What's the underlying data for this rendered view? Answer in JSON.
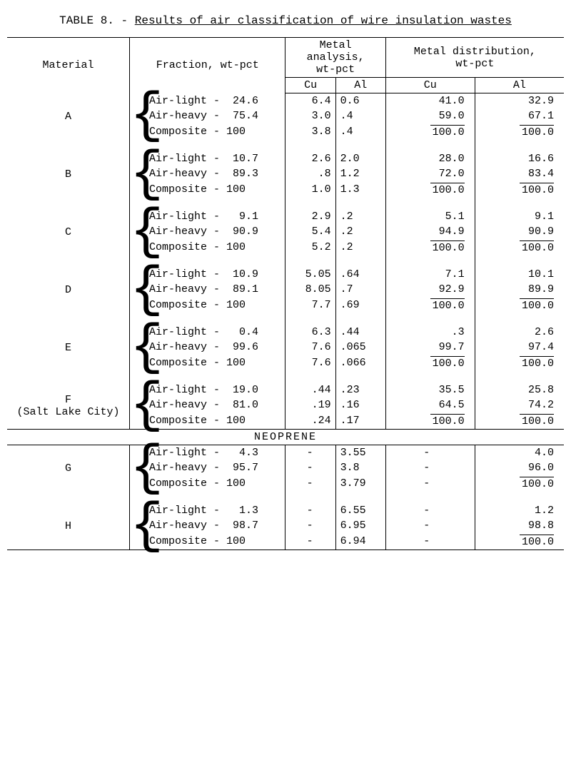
{
  "title_prefix": "TABLE 8. - ",
  "title_underlined": "Results of air classification of wire insulation wastes",
  "headers": {
    "material": "Material",
    "fraction": "Fraction, wt-pct",
    "metal_analysis": "Metal analysis,\nwt-pct",
    "metal_distribution": "Metal distribution,\nwt-pct",
    "cu": "Cu",
    "al": "Al"
  },
  "section_neoprene": "NEOPRENE",
  "fraction_labels": {
    "air_light": "Air-light -",
    "air_heavy": "Air-heavy -",
    "composite": "Composite -"
  },
  "groups": [
    {
      "id": "A",
      "material": "A",
      "rows": [
        {
          "frac_val": " 24.6",
          "cu_a": "6.4",
          "al_a": "0.6",
          "cu_d": "41.0",
          "al_d": "32.9",
          "ovr": false
        },
        {
          "frac_val": " 75.4",
          "cu_a": "3.0",
          "al_a": ".4",
          "cu_d": "59.0",
          "al_d": "67.1",
          "ovr": false,
          "ul": true
        },
        {
          "frac_val": "100",
          "cu_a": "3.8",
          "al_a": ".4",
          "cu_d": "100.0",
          "al_d": "100.0",
          "ovr": true
        }
      ]
    },
    {
      "id": "B",
      "material": "B",
      "rows": [
        {
          "frac_val": " 10.7",
          "cu_a": "2.6",
          "al_a": "2.0",
          "cu_d": "28.0",
          "al_d": "16.6",
          "ovr": false
        },
        {
          "frac_val": " 89.3",
          "cu_a": ".8",
          "al_a": "1.2",
          "cu_d": "72.0",
          "al_d": "83.4",
          "ovr": false,
          "ul": true
        },
        {
          "frac_val": "100",
          "cu_a": "1.0",
          "al_a": "1.3",
          "cu_d": "100.0",
          "al_d": "100.0",
          "ovr": true
        }
      ]
    },
    {
      "id": "C",
      "material": "C",
      "rows": [
        {
          "frac_val": "  9.1",
          "cu_a": "2.9",
          "al_a": ".2",
          "cu_d": "5.1",
          "al_d": "9.1",
          "ovr": false
        },
        {
          "frac_val": " 90.9",
          "cu_a": "5.4",
          "al_a": ".2",
          "cu_d": "94.9",
          "al_d": "90.9",
          "ovr": false,
          "ul": true
        },
        {
          "frac_val": "100",
          "cu_a": "5.2",
          "al_a": ".2",
          "cu_d": "100.0",
          "al_d": "100.0",
          "ovr": true
        }
      ]
    },
    {
      "id": "D",
      "material": "D",
      "rows": [
        {
          "frac_val": " 10.9",
          "cu_a": "5.05",
          "al_a": ".64",
          "cu_d": "7.1",
          "al_d": "10.1",
          "ovr": false
        },
        {
          "frac_val": " 89.1",
          "cu_a": "8.05",
          "al_a": ".7",
          "cu_d": "92.9",
          "al_d": "89.9",
          "ovr": false,
          "ul": true
        },
        {
          "frac_val": "100",
          "cu_a": "7.7",
          "al_a": ".69",
          "cu_d": "100.0",
          "al_d": "100.0",
          "ovr": true
        }
      ]
    },
    {
      "id": "E",
      "material": "E",
      "rows": [
        {
          "frac_val": "  0.4",
          "cu_a": "6.3",
          "al_a": ".44",
          "cu_d": ".3",
          "al_d": "2.6",
          "ovr": false
        },
        {
          "frac_val": " 99.6",
          "cu_a": "7.6",
          "al_a": ".065",
          "cu_d": "99.7",
          "al_d": "97.4",
          "ovr": false,
          "ul": true
        },
        {
          "frac_val": "100",
          "cu_a": "7.6",
          "al_a": ".066",
          "cu_d": "100.0",
          "al_d": "100.0",
          "ovr": true
        }
      ]
    },
    {
      "id": "F",
      "material": "F\n(Salt Lake City)",
      "rows": [
        {
          "frac_val": " 19.0",
          "cu_a": ".44",
          "al_a": ".23",
          "cu_d": "35.5",
          "al_d": "25.8",
          "ovr": false
        },
        {
          "frac_val": " 81.0",
          "cu_a": ".19",
          "al_a": ".16",
          "cu_d": "64.5",
          "al_d": "74.2",
          "ovr": false,
          "ul": true
        },
        {
          "frac_val": "100",
          "cu_a": ".24",
          "al_a": ".17",
          "cu_d": "100.0",
          "al_d": "100.0",
          "ovr": true
        }
      ]
    }
  ],
  "neoprene_groups": [
    {
      "id": "G",
      "material": "G",
      "rows": [
        {
          "frac_val": "  4.3",
          "cu_a": "-",
          "al_a": "3.55",
          "cu_d": "-",
          "al_d": "4.0",
          "ovr": false
        },
        {
          "frac_val": " 95.7",
          "cu_a": "-",
          "al_a": "3.8",
          "cu_d": "-",
          "al_d": "96.0",
          "ovr": false,
          "ul": true
        },
        {
          "frac_val": "100",
          "cu_a": "-",
          "al_a": "3.79",
          "cu_d": "-",
          "al_d": "100.0",
          "ovr": true
        }
      ]
    },
    {
      "id": "H",
      "material": "H",
      "rows": [
        {
          "frac_val": "  1.3",
          "cu_a": "-",
          "al_a": "6.55",
          "cu_d": "-",
          "al_d": "1.2",
          "ovr": false
        },
        {
          "frac_val": " 98.7",
          "cu_a": "-",
          "al_a": "6.95",
          "cu_d": "-",
          "al_d": "98.8",
          "ovr": false,
          "ul": true
        },
        {
          "frac_val": "100",
          "cu_a": "-",
          "al_a": "6.94",
          "cu_d": "-",
          "al_d": "100.0",
          "ovr": true
        }
      ]
    }
  ],
  "style": {
    "font_family": "Courier New",
    "font_size_pt": 12,
    "background_color": "#ffffff",
    "text_color": "#000000",
    "rule_color": "#000000"
  }
}
